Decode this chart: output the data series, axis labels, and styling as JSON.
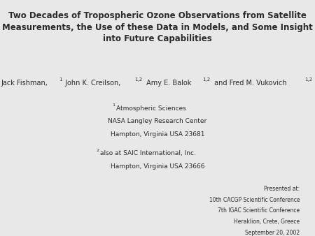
{
  "bg_color": "#e8e8e8",
  "title_line1": "Two Decades of Tropospheric Ozone Observations from Satellite",
  "title_line2": "Measurements, the Use of these Data in Models, and Some Insight",
  "title_line3": "into Future Capabilities",
  "author_parts": [
    [
      "Jack Fishman,",
      false
    ],
    [
      "1",
      true
    ],
    [
      " John K. Creilson,",
      false
    ],
    [
      "1,2",
      true
    ],
    [
      " Amy E. Balok",
      false
    ],
    [
      "1,2",
      true
    ],
    [
      " and Fred M. Vukovich",
      false
    ],
    [
      "1,2",
      true
    ]
  ],
  "affil1_sup": "1",
  "affil1_line1": "Atmospheric Sciences",
  "affil1_line2": "NASA Langley Research Center",
  "affil1_line3": "Hampton, Virginia USA 23681",
  "affil2_sup": "2",
  "affil2_line1": "also at SAIC International, Inc.",
  "affil2_line2": "Hampton, Virginia USA 23666",
  "presented_label": "Presented at:",
  "conf_line1": "10th CACGP Scientific Conference",
  "conf_line2": "7th IGAC Scientific Conference",
  "conf_line3": "Heraklion, Crete, Greece",
  "conf_line4": "September 20, 2002",
  "title_fontsize": 8.5,
  "authors_fontsize": 7.0,
  "affil_fontsize": 6.5,
  "conf_fontsize": 5.5,
  "text_color": "#2a2a2a"
}
